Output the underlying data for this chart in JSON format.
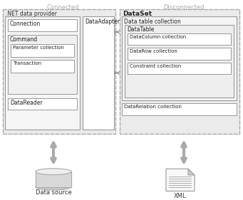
{
  "bg_color": "#ffffff",
  "connected_label": "Connected",
  "disconnected_label": "Disconnected",
  "net_provider_label": ".NET data provider",
  "dataset_label": "DataSet",
  "connection_label": "Connection",
  "command_label": "Command",
  "param_label": "Parameter collection",
  "transaction_label": "Transaction",
  "datareader_label": "DataReader",
  "dataadapter_label": "DataAdapter",
  "data_table_collection_label": "Data table collection",
  "datatable_label": "DataTable",
  "datacolumn_label": "DataColumn collection",
  "datarow_label": "DataRow collection",
  "constraint_label": "Constraint collection",
  "datarelation_label": "DataRelation collection",
  "datasource_label": "Data source",
  "xml_label": "XML",
  "section_label_color": "#aaaaaa",
  "arrow_color": "#aaaaaa",
  "box_border": "#aaaaaa",
  "inner_border": "#999999",
  "text_color": "#222222",
  "bg_outer": "#eeeeee",
  "bg_white": "#ffffff",
  "bg_light": "#f2f2f2"
}
